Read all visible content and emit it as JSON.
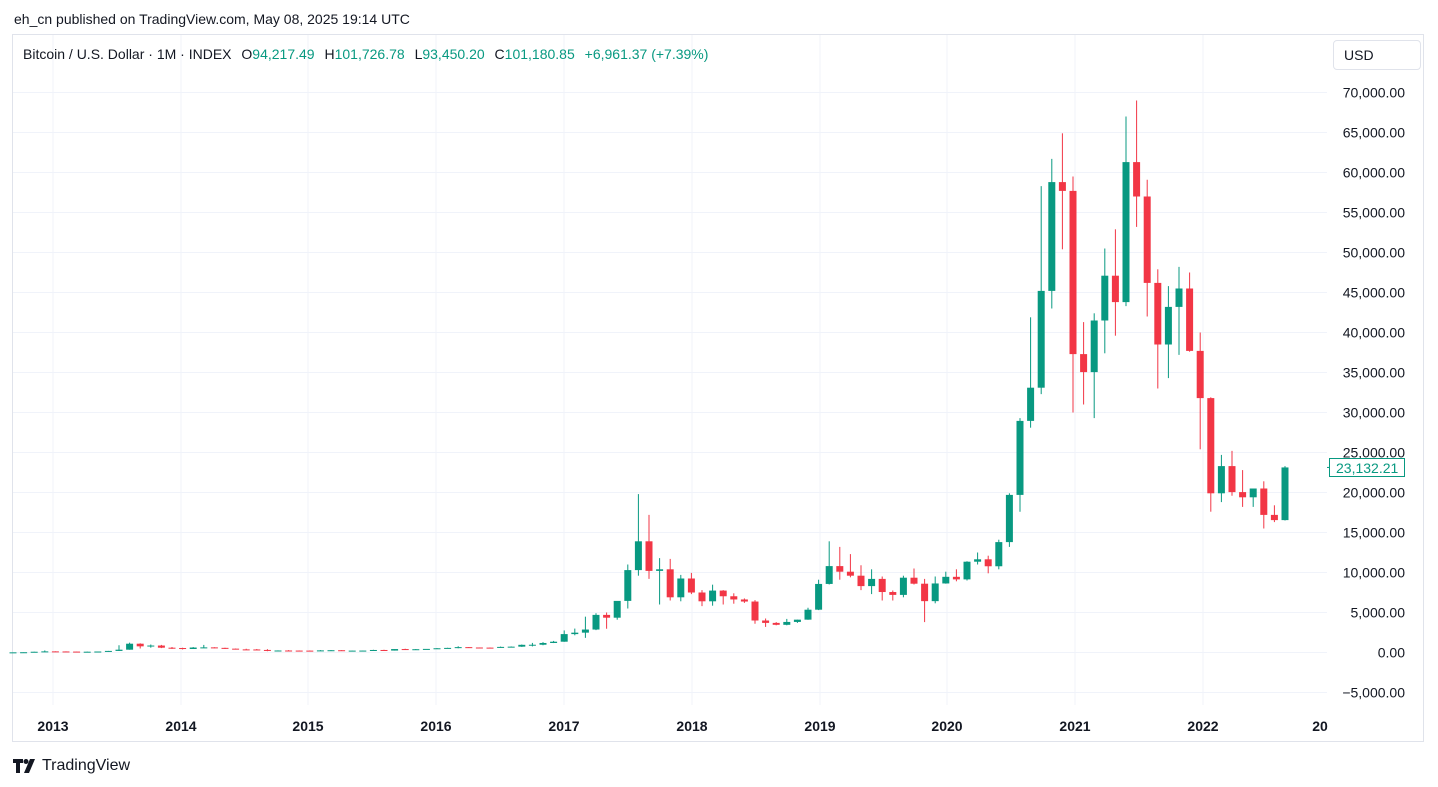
{
  "header": {
    "published": "eh_cn published on TradingView.com, May 08, 2025 19:14 UTC"
  },
  "legend": {
    "symbol": "Bitcoin / U.S. Dollar · 1M · INDEX",
    "open_label": "O",
    "open": "94,217.49",
    "high_label": "H",
    "high": "101,726.78",
    "low_label": "L",
    "low": "93,450.20",
    "close_label": "C",
    "close": "101,180.85",
    "change": "+6,961.37 (+7.39%)"
  },
  "currency_button": "USD",
  "footer": {
    "brand": "TradingView"
  },
  "colors": {
    "up": "#089981",
    "down": "#f23645",
    "grid": "#f0f3fa",
    "text": "#131722"
  },
  "chart_data": {
    "type": "candlestick",
    "timeframe": "1M",
    "x_tick_labels": [
      "2013",
      "2014",
      "2015",
      "2016",
      "2017",
      "2018",
      "2019",
      "2020",
      "2021",
      "2022",
      "20"
    ],
    "y_tick_labels": [
      "70,000.00",
      "65,000.00",
      "60,000.00",
      "55,000.00",
      "50,000.00",
      "45,000.00",
      "40,000.00",
      "35,000.00",
      "30,000.00",
      "25,000.00",
      "20,000.00",
      "15,000.00",
      "10,000.00",
      "5,000.00",
      "0.00",
      "−5,000.00"
    ],
    "y_ticks": [
      70000,
      65000,
      60000,
      55000,
      50000,
      45000,
      40000,
      35000,
      30000,
      25000,
      20000,
      15000,
      10000,
      5000,
      0,
      -5000
    ],
    "ylim": [
      -7500,
      72000
    ],
    "last_price_label": "23,132.21",
    "last_price": 23132.21,
    "candles_ohlc": [
      [
        13,
        20,
        13,
        20
      ],
      [
        20,
        33,
        19,
        33
      ],
      [
        33,
        94,
        33,
        94
      ],
      [
        94,
        260,
        60,
        140
      ],
      [
        140,
        148,
        80,
        130
      ],
      [
        130,
        140,
        100,
        115
      ],
      [
        115,
        100,
        64,
        95
      ],
      [
        95,
        110,
        66,
        100
      ],
      [
        100,
        125,
        96,
        122
      ],
      [
        122,
        200,
        104,
        198
      ],
      [
        198,
        900,
        190,
        350
      ],
      [
        350,
        1230,
        350,
        1100
      ],
      [
        1100,
        1150,
        500,
        770
      ],
      [
        770,
        1000,
        600,
        870
      ],
      [
        870,
        950,
        550,
        600
      ],
      [
        600,
        680,
        450,
        560
      ],
      [
        560,
        600,
        380,
        440
      ],
      [
        440,
        680,
        440,
        620
      ],
      [
        620,
        950,
        600,
        640
      ],
      [
        640,
        660,
        530,
        580
      ],
      [
        580,
        600,
        440,
        480
      ],
      [
        480,
        500,
        370,
        390
      ],
      [
        390,
        470,
        360,
        380
      ],
      [
        380,
        440,
        310,
        320
      ],
      [
        320,
        420,
        160,
        220
      ],
      [
        220,
        260,
        200,
        250
      ],
      [
        250,
        300,
        230,
        240
      ],
      [
        240,
        260,
        220,
        235
      ],
      [
        235,
        260,
        215,
        228
      ],
      [
        228,
        300,
        225,
        264
      ],
      [
        264,
        320,
        260,
        284
      ],
      [
        284,
        300,
        260,
        230
      ],
      [
        230,
        240,
        200,
        235
      ],
      [
        235,
        250,
        210,
        240
      ],
      [
        240,
        340,
        245,
        315
      ],
      [
        315,
        350,
        220,
        240
      ],
      [
        240,
        400,
        240,
        430
      ],
      [
        430,
        470,
        380,
        378
      ],
      [
        378,
        430,
        370,
        410
      ],
      [
        410,
        420,
        400,
        450
      ],
      [
        450,
        540,
        440,
        530
      ],
      [
        530,
        590,
        520,
        575
      ],
      [
        575,
        780,
        530,
        670
      ],
      [
        670,
        680,
        600,
        625
      ],
      [
        625,
        630,
        570,
        610
      ],
      [
        610,
        620,
        570,
        600
      ],
      [
        600,
        740,
        600,
        700
      ],
      [
        700,
        760,
        690,
        730
      ],
      [
        730,
        1000,
        700,
        960
      ],
      [
        960,
        1200,
        760,
        970
      ],
      [
        970,
        1290,
        900,
        1190
      ],
      [
        1190,
        1450,
        1180,
        1350
      ],
      [
        1350,
        2760,
        1340,
        2300
      ],
      [
        2300,
        2990,
        2150,
        2480
      ],
      [
        2480,
        4480,
        1830,
        2870
      ],
      [
        2870,
        4900,
        2800,
        4700
      ],
      [
        4700,
        5000,
        2970,
        4350
      ],
      [
        4350,
        6150,
        4100,
        6450
      ],
      [
        6450,
        11000,
        5500,
        10300
      ],
      [
        10300,
        19800,
        9600,
        13900
      ],
      [
        13900,
        17200,
        9200,
        10200
      ],
      [
        10200,
        11800,
        6000,
        10400
      ],
      [
        10400,
        11700,
        6500,
        6900
      ],
      [
        6900,
        9700,
        6400,
        9250
      ],
      [
        9250,
        9950,
        7300,
        7500
      ],
      [
        7500,
        7800,
        5800,
        6400
      ],
      [
        6400,
        8480,
        5850,
        7740
      ],
      [
        7740,
        7800,
        6000,
        7030
      ],
      [
        7030,
        7400,
        6100,
        6630
      ],
      [
        6630,
        6760,
        6200,
        6370
      ],
      [
        6370,
        6550,
        3600,
        4000
      ],
      [
        4000,
        4250,
        3200,
        3700
      ],
      [
        3700,
        3800,
        3400,
        3460
      ],
      [
        3460,
        4200,
        3400,
        3820
      ],
      [
        3820,
        4100,
        3700,
        4105
      ],
      [
        4105,
        5600,
        4100,
        5350
      ],
      [
        5350,
        9100,
        5300,
        8570
      ],
      [
        8570,
        13900,
        8500,
        10800
      ],
      [
        10800,
        13200,
        9100,
        10100
      ],
      [
        10100,
        12300,
        9400,
        9600
      ],
      [
        9600,
        10900,
        7800,
        8300
      ],
      [
        8300,
        10400,
        7300,
        9200
      ],
      [
        9200,
        9500,
        6500,
        7560
      ],
      [
        7560,
        7750,
        6500,
        7200
      ],
      [
        7200,
        9600,
        6900,
        9350
      ],
      [
        9350,
        10500,
        8500,
        8600
      ],
      [
        8600,
        9200,
        3800,
        6420
      ],
      [
        6420,
        9500,
        6150,
        8630
      ],
      [
        8630,
        10100,
        8600,
        9460
      ],
      [
        9460,
        10400,
        8900,
        9140
      ],
      [
        9140,
        11400,
        9000,
        11350
      ],
      [
        11350,
        12500,
        11000,
        11650
      ],
      [
        11650,
        12100,
        9900,
        10780
      ],
      [
        10780,
        14100,
        10400,
        13800
      ],
      [
        13800,
        19900,
        13200,
        19700
      ],
      [
        19700,
        29300,
        17600,
        28950
      ],
      [
        28950,
        41900,
        28100,
        33100
      ],
      [
        33100,
        58300,
        32300,
        45200
      ],
      [
        45200,
        61700,
        43000,
        58800
      ],
      [
        58800,
        64900,
        50400,
        57700
      ],
      [
        57700,
        59500,
        30000,
        37300
      ],
      [
        37300,
        41300,
        31000,
        35050
      ],
      [
        35050,
        42400,
        29300,
        41500
      ],
      [
        41500,
        50500,
        37400,
        47100
      ],
      [
        47100,
        52900,
        39600,
        43800
      ],
      [
        43800,
        67000,
        43300,
        61300
      ],
      [
        61300,
        69000,
        53200,
        57000
      ],
      [
        57000,
        59100,
        42000,
        46200
      ],
      [
        46200,
        47900,
        33000,
        38500
      ],
      [
        38500,
        45800,
        34300,
        43200
      ],
      [
        43200,
        48200,
        37200,
        45500
      ],
      [
        45500,
        47500,
        37600,
        37700
      ],
      [
        37700,
        40000,
        25400,
        31800
      ],
      [
        31800,
        31900,
        17600,
        19900
      ],
      [
        19900,
        24700,
        18800,
        23300
      ],
      [
        23300,
        25200,
        19600,
        20050
      ],
      [
        20050,
        22800,
        18200,
        19400
      ],
      [
        19400,
        20500,
        18200,
        20500
      ],
      [
        20500,
        21400,
        15500,
        17200
      ],
      [
        17200,
        18400,
        16300,
        16550
      ],
      [
        16550,
        23300,
        16500,
        23132.21
      ]
    ]
  }
}
